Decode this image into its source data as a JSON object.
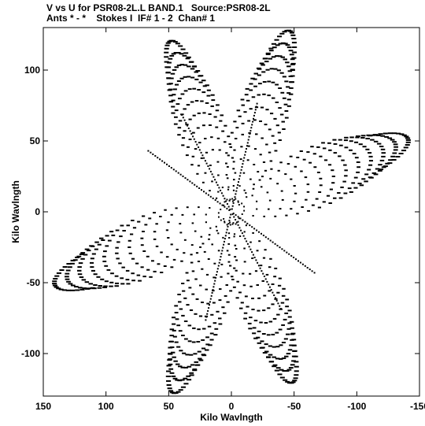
{
  "header": {
    "title_line1": "V vs U for PSR08-2L.L BAND.1   Source:PSR08-2L",
    "title_line2": "Ants * - *    Stokes I  IF# 1 - 2  Chan# 1"
  },
  "chart_data": {
    "type": "scatter",
    "title": "V vs U for PSR08-2L.L BAND.1   Source:PSR08-2L",
    "subtitle": "Ants * - *    Stokes I  IF# 1 - 2  Chan# 1",
    "xlabel": "Kilo Wavlngth",
    "ylabel": "Kilo Wavlngth",
    "xlim": [
      150,
      -150
    ],
    "ylim": [
      -130,
      130
    ],
    "x_ticks": [
      150,
      100,
      50,
      0,
      -50,
      -100,
      -150
    ],
    "x_tick_labels": [
      "150",
      "100",
      "50",
      "0",
      "-50",
      "-100",
      "-150"
    ],
    "y_ticks": [
      100,
      50,
      0,
      -50,
      -100
    ],
    "y_tick_labels": [
      "100",
      "50",
      "0",
      "-50",
      "-100"
    ],
    "grid": false,
    "legend": "none",
    "marker_color": "#000000",
    "pattern": {
      "description_type": "six-armed uv-coverage star",
      "arm_directions_deg": [
        68,
        110,
        160,
        248,
        290,
        340
      ],
      "arm_max_radius": [
        130,
        136,
        150,
        130,
        136,
        150
      ],
      "tracks_per_arm": 14,
      "track_length": 0.7,
      "ray_angles_deg": [
        60,
        240,
        33,
        213,
        105,
        285
      ]
    }
  }
}
